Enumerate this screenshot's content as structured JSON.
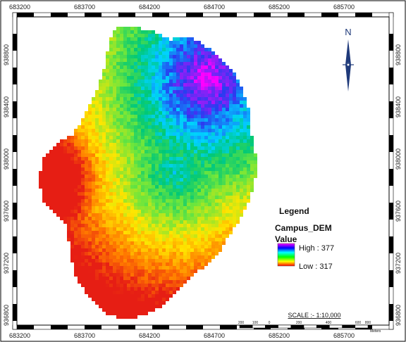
{
  "map": {
    "layer_name": "Campus_DEM",
    "x_ticks": [
      "683200",
      "683700",
      "684200",
      "684700",
      "685200",
      "685700"
    ],
    "y_ticks": [
      "938800",
      "938400",
      "938000",
      "937600",
      "937200",
      "936800"
    ]
  },
  "north_arrow": {
    "label": "N"
  },
  "legend": {
    "title": "Legend",
    "layer": "Campus_DEM",
    "field": "Value",
    "high": "High : 377",
    "low": "Low : 317",
    "ramp_colors": [
      "#ff00ff",
      "#0000ff",
      "#00ffff",
      "#00ff00",
      "#ffff00",
      "#ff0000"
    ]
  },
  "scale": {
    "title": "SCALE :- 1:10,000",
    "labels": [
      "200",
      "100",
      "0",
      "200",
      "400",
      "600",
      "800"
    ],
    "units": "Meters"
  },
  "dem": {
    "min_value": 317,
    "max_value": 377
  }
}
